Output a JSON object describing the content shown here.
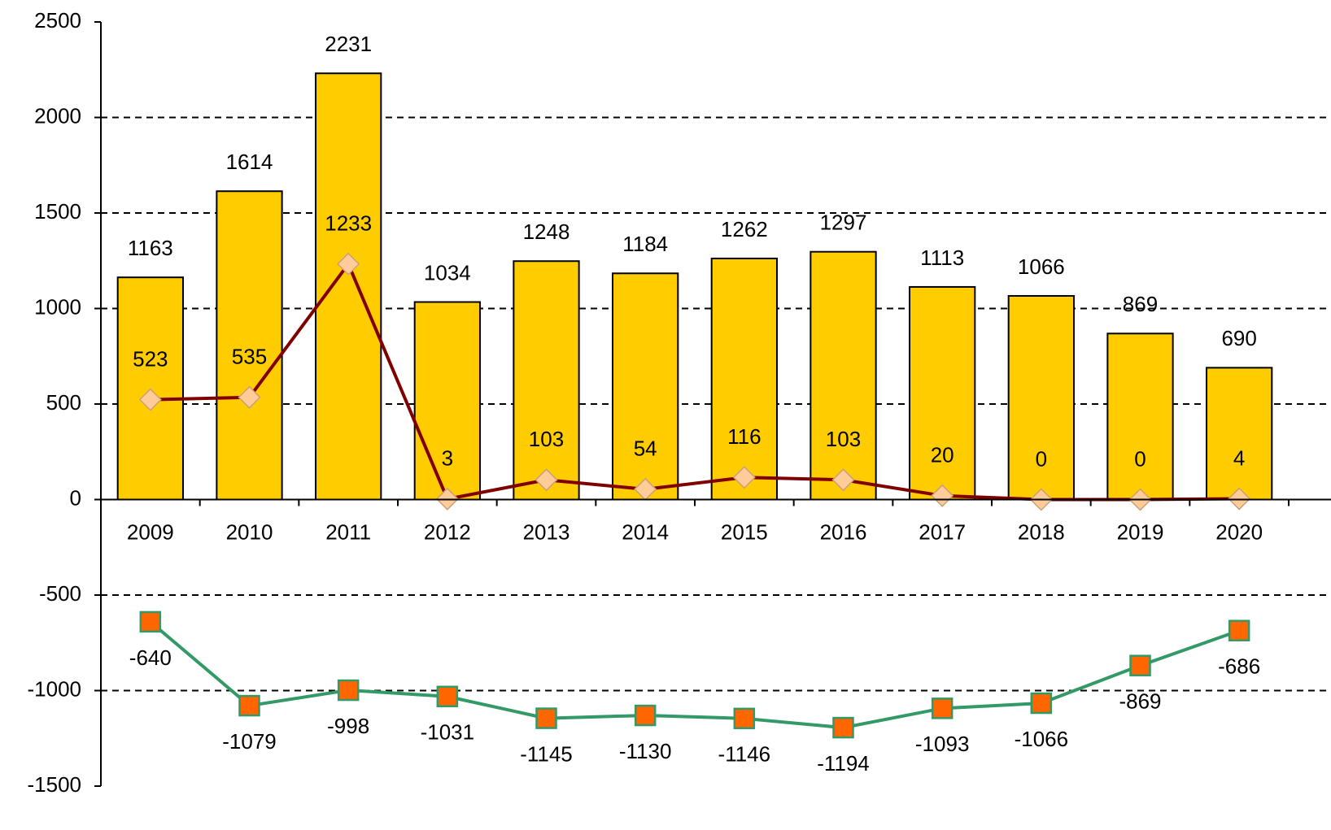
{
  "chart_data": {
    "type": "bar",
    "categories": [
      "2009",
      "2010",
      "2011",
      "2012",
      "2013",
      "2014",
      "2015",
      "2016",
      "2017",
      "2018",
      "2019",
      "2020"
    ],
    "series": [
      {
        "type": "bar",
        "color": "#ffcc00",
        "values": [
          1163,
          1614,
          2231,
          1034,
          1248,
          1184,
          1262,
          1297,
          1113,
          1066,
          869,
          690
        ]
      },
      {
        "type": "line",
        "color": "#800000",
        "marker_color": "#ffcc99",
        "marker": "diamond",
        "values": [
          523,
          535,
          1233,
          3,
          103,
          54,
          116,
          103,
          20,
          0,
          0,
          4
        ]
      },
      {
        "type": "line",
        "color": "#339966",
        "marker_color": "#ff6600",
        "marker": "square",
        "values": [
          -640,
          -1079,
          -998,
          -1031,
          -1145,
          -1130,
          -1146,
          -1194,
          -1093,
          -1066,
          -869,
          -686
        ]
      }
    ],
    "ylim": [
      -1500,
      2500
    ],
    "yticks": [
      -1500,
      -1000,
      -500,
      0,
      500,
      1000,
      1500,
      2000,
      2500
    ],
    "grid": true
  }
}
